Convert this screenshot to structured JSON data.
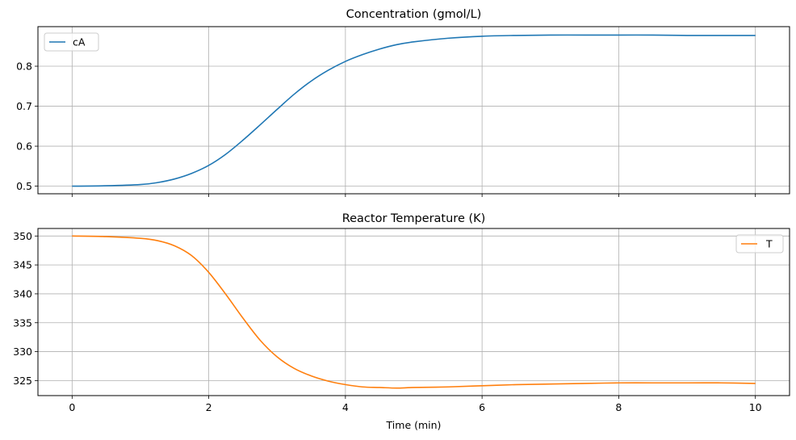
{
  "chart_data": [
    {
      "type": "line",
      "title": "Concentration (gmol/L)",
      "xlabel": "",
      "ylabel": "",
      "xlim": [
        -0.5,
        10.5
      ],
      "ylim": [
        0.481,
        0.899
      ],
      "xticks": [
        0,
        2,
        4,
        6,
        8,
        10
      ],
      "xtick_labels_visible": false,
      "yticks": [
        0.5,
        0.6,
        0.7,
        0.8
      ],
      "ytick_labels": [
        "0.5",
        "0.6",
        "0.7",
        "0.8"
      ],
      "grid": true,
      "legend": "upper left",
      "series": [
        {
          "name": "cA",
          "color": "#1f77b4",
          "x": [
            0,
            0.5,
            1.0,
            1.25,
            1.5,
            1.75,
            2.0,
            2.25,
            2.5,
            2.75,
            3.0,
            3.25,
            3.5,
            3.75,
            4.0,
            4.25,
            4.5,
            4.75,
            5.0,
            5.5,
            6.0,
            6.5,
            7.0,
            7.5,
            8.0,
            8.5,
            9.0,
            9.5,
            10.0
          ],
          "values": [
            0.5,
            0.501,
            0.504,
            0.509,
            0.518,
            0.532,
            0.552,
            0.58,
            0.615,
            0.653,
            0.692,
            0.73,
            0.763,
            0.79,
            0.812,
            0.829,
            0.843,
            0.854,
            0.861,
            0.87,
            0.875,
            0.877,
            0.878,
            0.878,
            0.878,
            0.878,
            0.877,
            0.877,
            0.877
          ]
        }
      ]
    },
    {
      "type": "line",
      "title": "Reactor Temperature (K)",
      "xlabel": "Time (min)",
      "ylabel": "",
      "xlim": [
        -0.5,
        10.5
      ],
      "ylim": [
        322.4,
        351.3
      ],
      "xticks": [
        0,
        2,
        4,
        6,
        8,
        10
      ],
      "xtick_labels": [
        "0",
        "2",
        "4",
        "6",
        "8",
        "10"
      ],
      "yticks": [
        325,
        330,
        335,
        340,
        345,
        350
      ],
      "ytick_labels": [
        "325",
        "330",
        "335",
        "340",
        "345",
        "350"
      ],
      "grid": true,
      "legend": "upper right",
      "series": [
        {
          "name": "T",
          "color": "#ff7f0e",
          "x": [
            0,
            0.5,
            1.0,
            1.25,
            1.5,
            1.75,
            2.0,
            2.25,
            2.5,
            2.75,
            3.0,
            3.25,
            3.5,
            3.75,
            4.0,
            4.25,
            4.5,
            4.75,
            5.0,
            5.5,
            6.0,
            6.5,
            7.0,
            7.5,
            8.0,
            8.5,
            9.0,
            9.5,
            10.0
          ],
          "values": [
            350.0,
            349.9,
            349.6,
            349.2,
            348.3,
            346.6,
            343.7,
            339.9,
            335.8,
            332.0,
            329.1,
            327.1,
            325.8,
            324.9,
            324.3,
            323.9,
            323.8,
            323.7,
            323.8,
            323.9,
            324.1,
            324.3,
            324.4,
            324.5,
            324.6,
            324.6,
            324.6,
            324.6,
            324.5
          ]
        }
      ]
    }
  ]
}
